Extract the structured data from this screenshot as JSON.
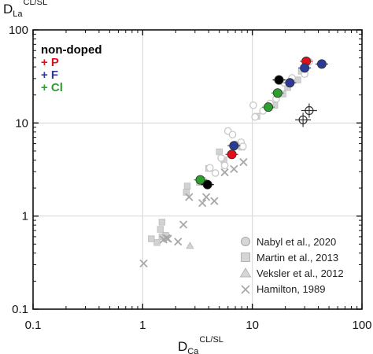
{
  "chart_data": {
    "type": "scatter",
    "x_scale": "log",
    "y_scale": "log",
    "xlim": [
      0.1,
      100
    ],
    "ylim": [
      0.1,
      100
    ],
    "grid": true,
    "x_ticks": [
      "0.1",
      "1",
      "10",
      "100"
    ],
    "y_ticks": [
      "0.1",
      "1",
      "10",
      "100"
    ],
    "xlabel": {
      "main": "D",
      "sub": "Ca",
      "sup": "CL/SL"
    },
    "ylabel": {
      "main": "D",
      "sub": "La",
      "sup": "CL/SL"
    },
    "legend_top": {
      "title": "non-doped",
      "items": [
        {
          "text": "+ P",
          "color": "#e0101a"
        },
        {
          "text": "+ F",
          "color": "#2b3a96"
        },
        {
          "text": "+ Cl",
          "color": "#2e9e2e"
        }
      ]
    },
    "legend_refs": [
      {
        "label": "Nabyl et al., 2020",
        "marker": "circle"
      },
      {
        "label": "Martin et al., 2013",
        "marker": "square"
      },
      {
        "label": "Veksler et al., 2012",
        "marker": "triangle"
      },
      {
        "label": "Hamilton, 1989",
        "marker": "x"
      }
    ],
    "series": [
      {
        "name": "Nabyl et al., 2020",
        "marker": "circle",
        "color": "#c8c8c8",
        "points": [
          [
            6.0,
            8.2
          ],
          [
            6.6,
            7.5
          ],
          [
            7.9,
            6.2
          ],
          [
            8.2,
            5.6
          ],
          [
            7.1,
            5.9
          ],
          [
            5.2,
            4.2
          ],
          [
            5.6,
            3.5
          ],
          [
            4.1,
            3.3
          ],
          [
            4.6,
            2.9
          ],
          [
            3.6,
            2.4
          ],
          [
            10.2,
            15.5
          ],
          [
            10.6,
            11.6
          ],
          [
            12.5,
            13.5
          ],
          [
            14.5,
            16.2
          ],
          [
            16.5,
            18.2
          ],
          [
            19.5,
            27.0
          ],
          [
            23.0,
            30.5
          ],
          [
            30.0,
            33.5
          ],
          [
            33.0,
            45.5
          ]
        ]
      },
      {
        "name": "Martin et al., 2013",
        "marker": "square",
        "color": "#c8c8c8",
        "points": [
          [
            1.35,
            0.52
          ],
          [
            1.5,
            0.6
          ],
          [
            1.45,
            0.72
          ],
          [
            1.5,
            0.86
          ],
          [
            1.62,
            0.62
          ],
          [
            1.2,
            0.57
          ],
          [
            2.55,
            2.1
          ],
          [
            2.5,
            1.8
          ],
          [
            3.3,
            2.3
          ],
          [
            4.0,
            3.25
          ],
          [
            5.0,
            4.9
          ],
          [
            5.5,
            4.0
          ],
          [
            8.0,
            5.5
          ],
          [
            11.0,
            11.8
          ],
          [
            16.0,
            15.5
          ],
          [
            19.0,
            20.5
          ],
          [
            21.0,
            24.0
          ],
          [
            26.0,
            29.0
          ],
          [
            28.0,
            36.0
          ]
        ]
      },
      {
        "name": "Veksler et al., 2012",
        "marker": "triangle",
        "color": "#c8c8c8",
        "points": [
          [
            2.7,
            0.48
          ]
        ]
      },
      {
        "name": "Hamilton, 1989",
        "marker": "x",
        "color": "#a8a8a8",
        "points": [
          [
            1.02,
            0.31
          ],
          [
            1.55,
            0.56
          ],
          [
            1.65,
            0.58
          ],
          [
            1.7,
            0.57
          ],
          [
            2.1,
            0.53
          ],
          [
            2.35,
            0.81
          ],
          [
            2.65,
            1.6
          ],
          [
            3.5,
            1.38
          ],
          [
            3.8,
            1.6
          ],
          [
            4.5,
            1.45
          ],
          [
            5.6,
            2.95
          ],
          [
            6.8,
            3.2
          ],
          [
            8.3,
            3.8
          ]
        ]
      },
      {
        "name": "non-doped",
        "marker": "circle-filled",
        "color": "#000000",
        "points": [
          [
            3.9,
            2.18
          ],
          [
            17.5,
            29.0
          ]
        ]
      },
      {
        "name": "+ P",
        "marker": "circle-filled",
        "color": "#e0101a",
        "points": [
          [
            6.5,
            4.6
          ],
          [
            31.0,
            46.0
          ]
        ]
      },
      {
        "name": "+ F",
        "marker": "circle-filled",
        "color": "#2b3a96",
        "points": [
          [
            6.8,
            5.7
          ],
          [
            22.0,
            27.0
          ],
          [
            30.0,
            39.0
          ],
          [
            43.0,
            43.0
          ]
        ]
      },
      {
        "name": "+ Cl",
        "marker": "circle-filled",
        "color": "#2e9e2e",
        "points": [
          [
            3.35,
            2.45
          ],
          [
            14.0,
            14.8
          ],
          [
            17.0,
            21.0
          ]
        ]
      },
      {
        "name": "open",
        "marker": "circle-open-cross",
        "color": "#333333",
        "points": [
          [
            29.0,
            10.8
          ],
          [
            33.0,
            13.6
          ]
        ]
      }
    ]
  }
}
